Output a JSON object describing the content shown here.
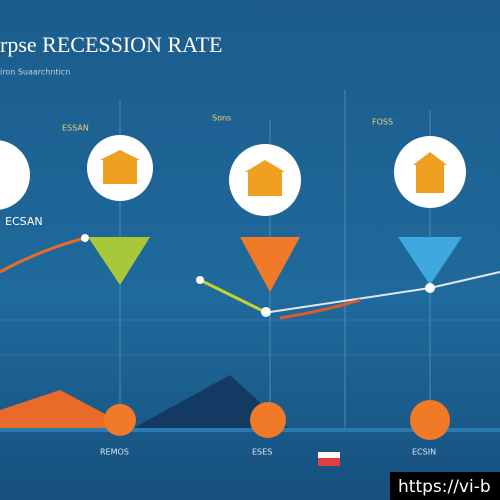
{
  "header": {
    "title": "rpse RECESSION RATE",
    "subtitle": "iron Suaarchnticn"
  },
  "labels": [
    "ECSAN",
    "Sons",
    "ESSAN",
    "FOSS",
    "REMOS",
    "ESES",
    "ECSIN"
  ],
  "watermark": "https://vi-b"
}
